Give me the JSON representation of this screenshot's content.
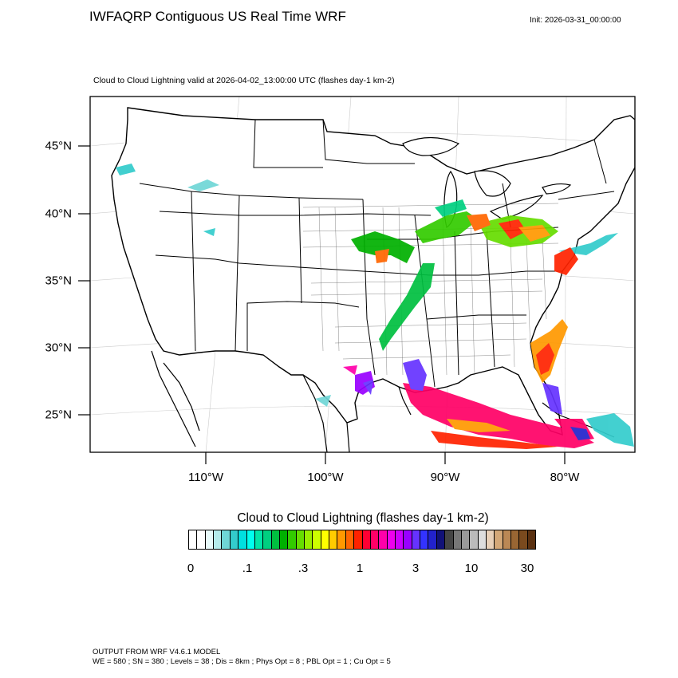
{
  "title": "IWFAQRP Contiguous US Real Time WRF",
  "init": "Init: 2026-03-31_00:00:00",
  "subtitle": "Cloud to Cloud Lightning valid at 2026-04-02_13:00:00 UTC   (flashes day-1 km-2)",
  "lat_labels": [
    "45°N",
    "40°N",
    "35°N",
    "30°N",
    "25°N"
  ],
  "lon_labels": [
    "110°W",
    "100°W",
    "90°W",
    "80°W"
  ],
  "colorbar": {
    "title": "Cloud to Cloud Lightning  (flashes day-1 km-2)",
    "ticks": [
      "0",
      ".1",
      ".3",
      "1",
      "3",
      "10",
      "30"
    ],
    "colors": [
      "#ffffff",
      "#ffffff",
      "#e8fafa",
      "#b4ebeb",
      "#6fd6d6",
      "#33cccc",
      "#00e0e0",
      "#00ffee",
      "#00e6a8",
      "#00d080",
      "#00c040",
      "#00b000",
      "#33cc00",
      "#66dd00",
      "#99ee00",
      "#ccff00",
      "#ffff00",
      "#ffcc00",
      "#ff9900",
      "#ff6600",
      "#ff2200",
      "#ff0033",
      "#ff0066",
      "#ff00aa",
      "#ee00ee",
      "#cc00ff",
      "#9900ff",
      "#6633ff",
      "#3333ff",
      "#2222cc",
      "#111177",
      "#444444",
      "#777777",
      "#999999",
      "#bbbbbb",
      "#dddddd",
      "#e8d0b8",
      "#d4a878",
      "#bb8855",
      "#996633",
      "#7a4a1e",
      "#5a3010"
    ]
  },
  "footer": {
    "line1": "OUTPUT FROM WRF V4.6.1 MODEL",
    "line2": "WE = 580 ; SN = 380 ; Levels = 38 ; Dis = 8km ; Phys Opt = 8 ; PBL Opt = 1 ; Cu Opt = 5"
  },
  "colors": {
    "accent_lightning_low": "#00d0d0",
    "accent_lightning_mid": "#00b000",
    "accent_lightning_high": "#ff0066",
    "accent_lightning_max": "#6633ff"
  }
}
